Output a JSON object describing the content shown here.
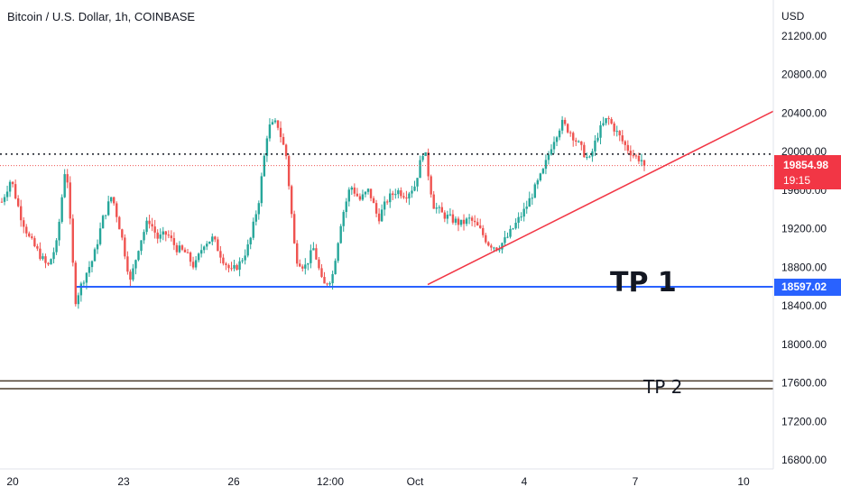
{
  "header": {
    "title": "Bitcoin / U.S. Dollar, 1h, COINBASE"
  },
  "axis": {
    "currency": "USD"
  },
  "colors": {
    "up": "#26a69a",
    "down": "#ef5350",
    "trendline": "#f23645",
    "tp1_line": "#2962ff",
    "tp2_line": "#4a3b2c",
    "grid_text": "#131722"
  },
  "chart_data": {
    "type": "candlestick",
    "title": "Bitcoin / U.S. Dollar, 1h, COINBASE",
    "ylabel": "USD",
    "ylim": [
      16600,
      21400
    ],
    "y_ticks": [
      "21200.00",
      "20800.00",
      "20400.00",
      "20000.00",
      "19600.00",
      "19200.00",
      "18800.00",
      "18400.00",
      "18000.00",
      "17600.00",
      "17200.00",
      "16800.00"
    ],
    "x_ticks": [
      "20",
      "23",
      "26",
      "12:00",
      "Oct",
      "4",
      "7",
      "10"
    ],
    "current_price": {
      "price": "19854.98",
      "countdown": "19:15",
      "value": 19854.98
    },
    "tp1": {
      "label": "TP 1",
      "price": "18597.02",
      "value": 18597.02
    },
    "tp2": {
      "label": "TP 2",
      "value_upper": 17620,
      "value_lower": 17540
    },
    "resistance_dotted": 19975,
    "trendline": {
      "from": {
        "date": "Oct 2",
        "value": 18620
      },
      "to": {
        "date": "Oct 10",
        "value": 20420
      }
    },
    "price_path": [
      19480,
      19720,
      19350,
      19100,
      18950,
      18800,
      19050,
      19920,
      18450,
      18700,
      18900,
      19300,
      19550,
      19150,
      18650,
      19050,
      19300,
      19100,
      19150,
      19000,
      18950,
      18800,
      19050,
      19100,
      18900,
      18750,
      18850,
      19050,
      19500,
      20250,
      20300,
      19950,
      18900,
      18800,
      19000,
      18600,
      18700,
      19300,
      19650,
      19500,
      19600,
      19300,
      19500,
      19600,
      19550,
      19650,
      20050,
      19450,
      19350,
      19300,
      19250,
      19300,
      19200,
      19050,
      19000,
      19100,
      19250,
      19400,
      19600,
      19800,
      20100,
      20300,
      20200,
      20050,
      19900,
      20200,
      20350,
      20200,
      20050,
      19950,
      19900
    ]
  }
}
